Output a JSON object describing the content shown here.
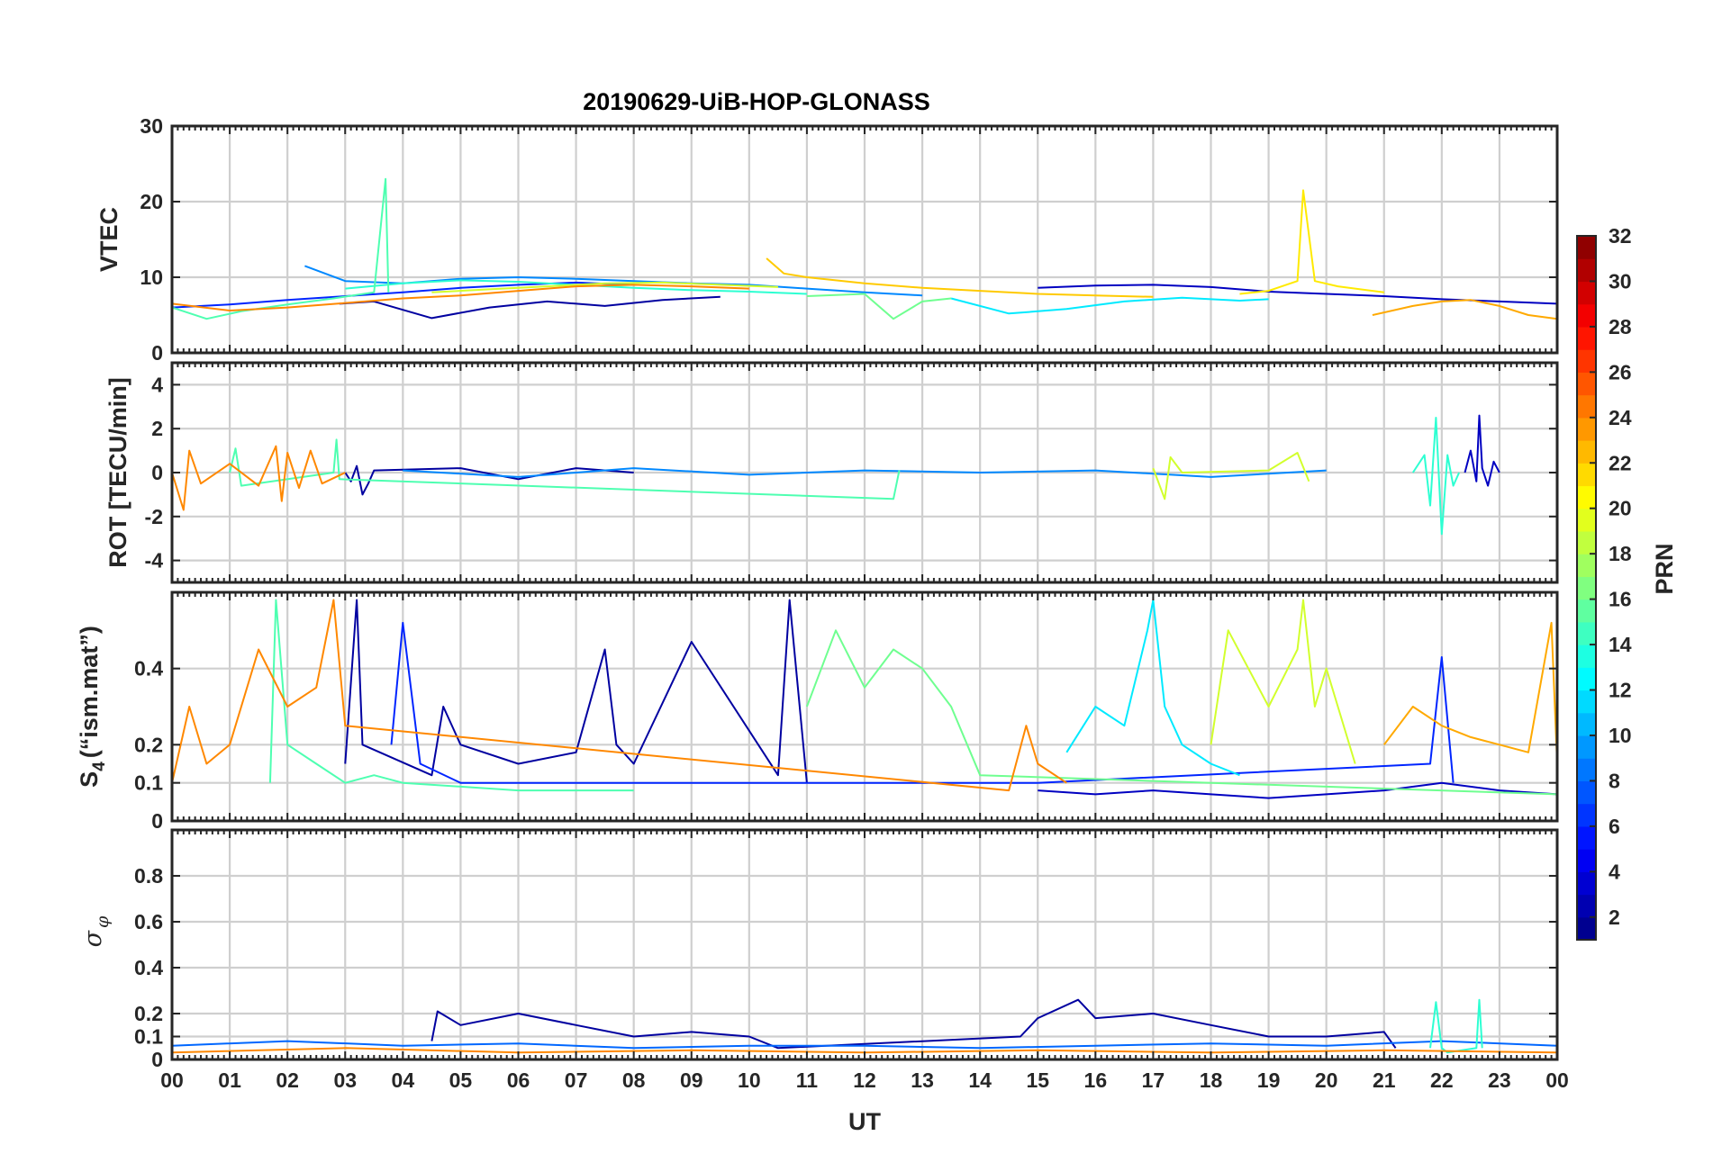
{
  "chart_data": [
    {
      "type": "line",
      "panel": "vtec",
      "title": "20190629-UiB-HOP-GLONASS",
      "ylabel": "VTEC",
      "ylim": [
        0,
        30
      ],
      "yticks": [
        0,
        10,
        20,
        30
      ],
      "xlim": [
        0,
        24
      ],
      "series": [
        {
          "name": "PRN 2",
          "prn": 2,
          "x": [
            2.9,
            3.5,
            4.5,
            5.5,
            6.5,
            7.5,
            8.5,
            9.5
          ],
          "y": [
            6.5,
            6.8,
            4.6,
            6.0,
            6.8,
            6.2,
            7.0,
            7.4
          ]
        },
        {
          "name": "PRN 3",
          "prn": 3,
          "x": [
            15.0,
            16.0,
            17.0,
            18.0,
            19.0,
            20.0,
            21.0,
            22.0,
            23.0,
            24.0
          ],
          "y": [
            8.6,
            8.9,
            9.0,
            8.7,
            8.1,
            7.8,
            7.5,
            7.1,
            6.8,
            6.5
          ]
        },
        {
          "name": "PRN 6",
          "prn": 6,
          "x": [
            0.0,
            1.0,
            2.0,
            3.0,
            4.0,
            5.0,
            6.0,
            7.0,
            8.0
          ],
          "y": [
            6.0,
            6.4,
            7.0,
            7.5,
            8.0,
            8.6,
            9.0,
            9.3,
            9.0
          ]
        },
        {
          "name": "PRN 9",
          "prn": 9,
          "x": [
            2.3,
            3.0,
            4.0,
            5.0,
            6.0,
            7.0,
            8.0,
            9.0,
            10.0,
            11.0,
            12.0,
            13.0
          ],
          "y": [
            11.5,
            9.5,
            9.2,
            9.8,
            10.0,
            9.8,
            9.5,
            9.2,
            9.0,
            8.5,
            8.0,
            7.6
          ]
        },
        {
          "name": "PRN 12",
          "prn": 12,
          "x": [
            13.5,
            14.5,
            15.5,
            16.5,
            17.5,
            18.5,
            19.0
          ],
          "y": [
            7.2,
            5.2,
            5.8,
            6.8,
            7.3,
            6.9,
            7.1
          ]
        },
        {
          "name": "PRN 14",
          "prn": 14,
          "x": [
            3.0,
            4.0,
            5.0,
            6.0,
            7.0,
            8.0,
            9.0,
            10.0,
            11.0
          ],
          "y": [
            8.5,
            9.2,
            9.6,
            9.4,
            9.0,
            8.6,
            8.3,
            8.1,
            7.8
          ]
        },
        {
          "name": "PRN 15",
          "prn": 15,
          "x": [
            0.0,
            0.6,
            1.2,
            2.0,
            2.8,
            3.5,
            3.7,
            3.75
          ],
          "y": [
            6.0,
            4.5,
            5.5,
            6.4,
            7.2,
            8.0,
            23.0,
            8.0
          ]
        },
        {
          "name": "PRN 16",
          "prn": 16,
          "x": [
            11.0,
            12.0,
            12.5,
            13.0,
            13.5
          ],
          "y": [
            7.5,
            7.8,
            4.5,
            6.8,
            7.2
          ]
        },
        {
          "name": "PRN 19",
          "prn": 19,
          "x": [
            4.5,
            5.5,
            6.5,
            7.5,
            8.5,
            9.5,
            10.5
          ],
          "y": [
            8.0,
            8.4,
            8.8,
            9.2,
            9.3,
            9.0,
            8.7
          ]
        },
        {
          "name": "PRN 21",
          "prn": 21,
          "x": [
            18.5,
            19.0,
            19.5,
            19.6,
            19.8,
            20.2,
            21.0
          ],
          "y": [
            7.8,
            8.2,
            9.5,
            21.5,
            9.5,
            8.8,
            8.0
          ]
        },
        {
          "name": "PRN 22",
          "prn": 22,
          "x": [
            10.3,
            10.6,
            11.0,
            12.0,
            13.0,
            14.0,
            15.0,
            16.0,
            17.0
          ],
          "y": [
            12.5,
            10.5,
            10.0,
            9.2,
            8.6,
            8.2,
            7.8,
            7.6,
            7.4
          ]
        },
        {
          "name": "PRN 23",
          "prn": 23,
          "x": [
            20.8,
            21.5,
            22.0,
            22.5,
            23.0,
            23.5,
            24.0
          ],
          "y": [
            5.0,
            6.2,
            6.8,
            7.0,
            6.2,
            5.0,
            4.5
          ]
        },
        {
          "name": "PRN 24",
          "prn": 24,
          "x": [
            0.0,
            1.0,
            2.0,
            3.0,
            4.0,
            5.0,
            6.0,
            7.0,
            8.0,
            9.0,
            10.0
          ],
          "y": [
            6.5,
            5.6,
            6.0,
            6.6,
            7.2,
            7.6,
            8.2,
            8.8,
            9.0,
            8.8,
            8.5
          ]
        }
      ]
    },
    {
      "type": "line",
      "panel": "rot",
      "ylabel": "ROT [TECU/min]",
      "ylim": [
        -5,
        5
      ],
      "yticks": [
        -4,
        -2,
        0,
        2,
        4
      ],
      "xlim": [
        0,
        24
      ],
      "series": [
        {
          "name": "PRN 2",
          "prn": 2,
          "x": [
            3.0,
            3.1,
            3.2,
            3.3,
            3.4,
            3.5,
            5.0,
            6.0,
            7.0,
            8.0
          ],
          "y": [
            0.0,
            -0.4,
            0.3,
            -1.0,
            -0.5,
            0.1,
            0.2,
            -0.3,
            0.2,
            0.0
          ]
        },
        {
          "name": "PRN 3",
          "prn": 3,
          "x": [
            22.4,
            22.5,
            22.6,
            22.65,
            22.7,
            22.8,
            22.9,
            23.0
          ],
          "y": [
            0.0,
            1.0,
            -0.4,
            2.6,
            0.2,
            -0.6,
            0.5,
            0.0
          ]
        },
        {
          "name": "PRN 9",
          "prn": 9,
          "x": [
            4.0,
            6.0,
            8.0,
            10.0,
            12.0,
            14.0,
            16.0,
            18.0,
            20.0
          ],
          "y": [
            0.1,
            -0.2,
            0.2,
            -0.1,
            0.1,
            0.0,
            0.1,
            -0.2,
            0.1
          ]
        },
        {
          "name": "PRN 14",
          "prn": 14,
          "x": [
            21.5,
            21.7,
            21.8,
            21.9,
            22.0,
            22.1,
            22.2,
            22.3
          ],
          "y": [
            0.0,
            0.8,
            -1.5,
            2.5,
            -2.8,
            0.8,
            -0.6,
            0.0
          ]
        },
        {
          "name": "PRN 15",
          "prn": 15,
          "x": [
            1.0,
            1.1,
            1.2,
            2.8,
            2.85,
            2.9,
            12.5,
            12.6
          ],
          "y": [
            0.0,
            1.1,
            -0.6,
            0.0,
            1.5,
            -0.3,
            -1.2,
            0.1
          ]
        },
        {
          "name": "PRN 19",
          "prn": 19,
          "x": [
            17.0,
            17.2,
            17.3,
            17.5,
            19.0,
            19.5,
            19.7
          ],
          "y": [
            0.2,
            -1.2,
            0.7,
            0.0,
            0.1,
            0.9,
            -0.4
          ]
        },
        {
          "name": "PRN 24",
          "prn": 24,
          "x": [
            0.0,
            0.2,
            0.3,
            0.5,
            1.0,
            1.5,
            1.8,
            1.9,
            2.0,
            2.2,
            2.4,
            2.6,
            3.0
          ],
          "y": [
            0.0,
            -1.7,
            1.0,
            -0.5,
            0.4,
            -0.6,
            1.2,
            -1.3,
            0.9,
            -0.7,
            1.0,
            -0.5,
            0.0
          ]
        }
      ]
    },
    {
      "type": "line",
      "panel": "s4",
      "ylabel": "S4 (\"ism.mat\")",
      "ylim": [
        0,
        0.6
      ],
      "yticks": [
        0,
        0.1,
        0.2,
        0.4
      ],
      "xlim": [
        0,
        24
      ],
      "series": [
        {
          "name": "PRN 2",
          "prn": 2,
          "x": [
            3.0,
            3.2,
            3.3,
            4.5,
            4.7,
            5.0,
            6.0,
            7.0,
            7.5,
            7.7,
            8.0,
            9.0,
            10.5,
            10.7,
            11.0
          ],
          "y": [
            0.15,
            0.58,
            0.2,
            0.12,
            0.3,
            0.2,
            0.15,
            0.18,
            0.45,
            0.2,
            0.15,
            0.47,
            0.12,
            0.58,
            0.1
          ]
        },
        {
          "name": "PRN 3",
          "prn": 3,
          "x": [
            15.0,
            16.0,
            17.0,
            18.0,
            19.0,
            20.0,
            21.0,
            22.0,
            23.0,
            24.0
          ],
          "y": [
            0.08,
            0.07,
            0.08,
            0.07,
            0.06,
            0.07,
            0.08,
            0.1,
            0.08,
            0.07
          ]
        },
        {
          "name": "PRN 6",
          "prn": 6,
          "x": [
            3.8,
            4.0,
            4.3,
            5.0,
            10.0,
            11.0,
            14.0,
            15.0,
            21.8,
            22.0,
            22.2
          ],
          "y": [
            0.2,
            0.52,
            0.15,
            0.1,
            0.1,
            0.1,
            0.1,
            0.1,
            0.15,
            0.43,
            0.1
          ]
        },
        {
          "name": "PRN 12",
          "prn": 12,
          "x": [
            15.5,
            16.0,
            16.5,
            16.9,
            17.0,
            17.2,
            17.5,
            18.0,
            18.5
          ],
          "y": [
            0.18,
            0.3,
            0.25,
            0.5,
            0.58,
            0.3,
            0.2,
            0.15,
            0.12
          ]
        },
        {
          "name": "PRN 15",
          "prn": 15,
          "x": [
            1.7,
            1.8,
            2.0,
            2.5,
            3.0,
            3.5,
            4.0,
            5.0,
            6.0,
            7.0,
            8.0
          ],
          "y": [
            0.1,
            0.58,
            0.2,
            0.15,
            0.1,
            0.12,
            0.1,
            0.09,
            0.08,
            0.08,
            0.08
          ]
        },
        {
          "name": "PRN 16",
          "prn": 16,
          "x": [
            11.0,
            11.5,
            12.0,
            12.5,
            13.0,
            13.5,
            14.0,
            24.0
          ],
          "y": [
            0.3,
            0.5,
            0.35,
            0.45,
            0.4,
            0.3,
            0.12,
            0.07
          ]
        },
        {
          "name": "PRN 19",
          "prn": 19,
          "x": [
            18.0,
            18.3,
            19.0,
            19.5,
            19.6,
            19.8,
            20.0,
            20.5
          ],
          "y": [
            0.2,
            0.5,
            0.3,
            0.45,
            0.58,
            0.3,
            0.4,
            0.15
          ]
        },
        {
          "name": "PRN 23",
          "prn": 23,
          "x": [
            21.0,
            21.5,
            22.0,
            22.5,
            23.0,
            23.5,
            23.9,
            24.0
          ],
          "y": [
            0.2,
            0.3,
            0.25,
            0.22,
            0.2,
            0.18,
            0.52,
            0.15
          ]
        },
        {
          "name": "PRN 24",
          "prn": 24,
          "x": [
            0.0,
            0.3,
            0.6,
            1.0,
            1.5,
            2.0,
            2.5,
            2.8,
            3.0,
            14.5,
            14.8,
            15.0,
            15.5
          ],
          "y": [
            0.1,
            0.3,
            0.15,
            0.2,
            0.45,
            0.3,
            0.35,
            0.58,
            0.25,
            0.08,
            0.25,
            0.15,
            0.1
          ]
        }
      ]
    },
    {
      "type": "line",
      "panel": "sigma",
      "ylabel": "σφ",
      "ylim": [
        0,
        1
      ],
      "yticks": [
        0,
        0.1,
        0.2,
        0.4,
        0.6,
        0.8
      ],
      "xlim": [
        0,
        24
      ],
      "xlabel": "UT",
      "xticklabels": [
        "00",
        "01",
        "02",
        "03",
        "04",
        "05",
        "06",
        "07",
        "08",
        "09",
        "10",
        "11",
        "12",
        "13",
        "14",
        "15",
        "16",
        "17",
        "18",
        "19",
        "20",
        "21",
        "22",
        "23",
        "00"
      ],
      "series": [
        {
          "name": "PRN 2",
          "prn": 2,
          "x": [
            4.5,
            4.6,
            5.0,
            6.0,
            7.0,
            8.0,
            9.0,
            10.0,
            10.5,
            14.7,
            15.0,
            15.7,
            16.0,
            17.0,
            18.0,
            19.0,
            20.0,
            21.0,
            21.2
          ],
          "y": [
            0.08,
            0.21,
            0.15,
            0.2,
            0.15,
            0.1,
            0.12,
            0.1,
            0.05,
            0.1,
            0.18,
            0.26,
            0.18,
            0.2,
            0.15,
            0.1,
            0.1,
            0.12,
            0.05
          ]
        },
        {
          "name": "PRN 8",
          "prn": 8,
          "x": [
            0.0,
            2.0,
            4.0,
            6.0,
            8.0,
            10.0,
            12.0,
            14.0,
            16.0,
            18.0,
            20.0,
            22.0,
            24.0
          ],
          "y": [
            0.06,
            0.08,
            0.06,
            0.07,
            0.05,
            0.06,
            0.06,
            0.05,
            0.06,
            0.07,
            0.06,
            0.08,
            0.06
          ]
        },
        {
          "name": "PRN 14",
          "prn": 14,
          "x": [
            21.8,
            21.9,
            22.0,
            22.1,
            22.6,
            22.65,
            22.7
          ],
          "y": [
            0.05,
            0.25,
            0.05,
            0.03,
            0.05,
            0.26,
            0.05
          ]
        },
        {
          "name": "PRN 24",
          "prn": 24,
          "x": [
            0.0,
            3.0,
            6.0,
            9.0,
            12.0,
            15.0,
            18.0,
            21.0,
            24.0
          ],
          "y": [
            0.03,
            0.05,
            0.03,
            0.04,
            0.03,
            0.04,
            0.03,
            0.04,
            0.03
          ]
        }
      ]
    }
  ],
  "colorbar": {
    "label": "PRN",
    "min": 1,
    "max": 32,
    "ticks": [
      2,
      4,
      6,
      8,
      10,
      12,
      14,
      16,
      18,
      20,
      22,
      24,
      26,
      28,
      30,
      32
    ],
    "colormap": "jet"
  }
}
